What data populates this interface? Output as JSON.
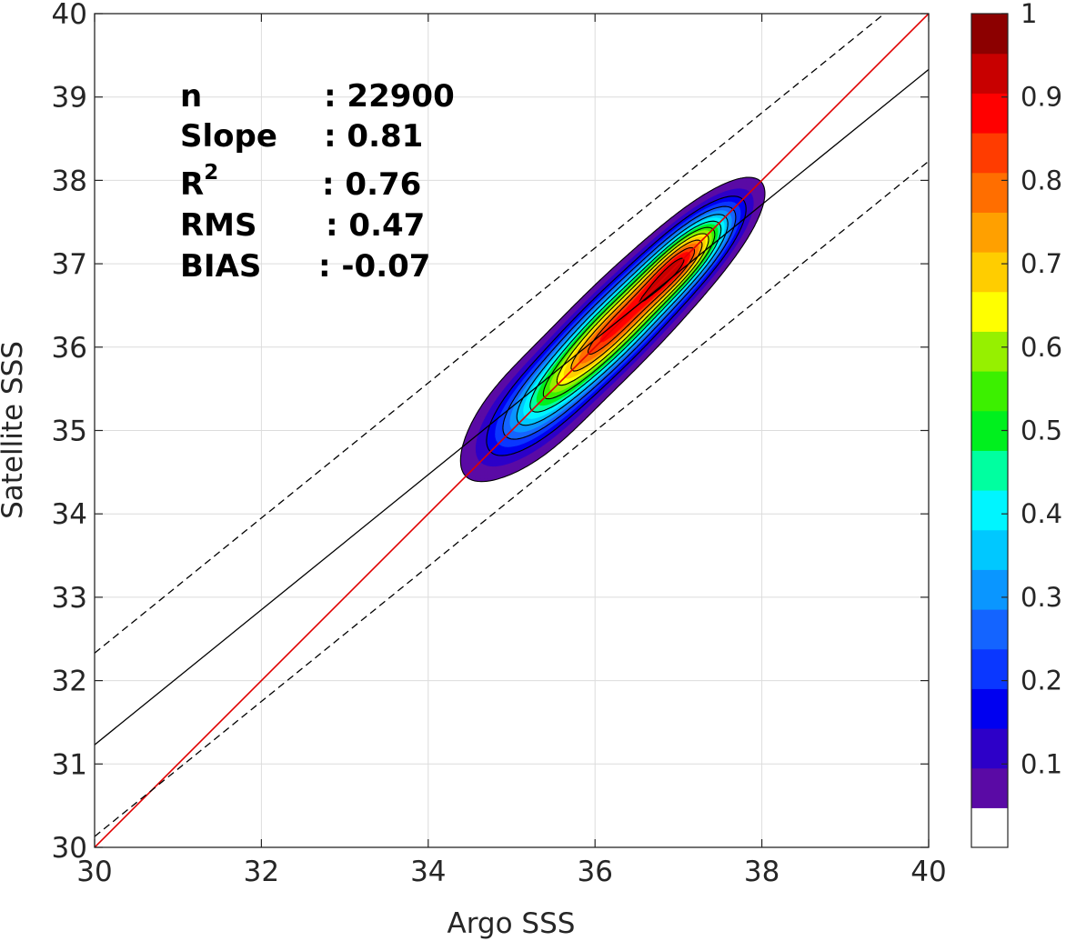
{
  "chart_data": {
    "type": "contour",
    "xlabel": "Argo SSS",
    "ylabel": "Satellite SSS",
    "xlim": [
      30,
      40
    ],
    "ylim": [
      30,
      40
    ],
    "xticks": [
      "30",
      "32",
      "34",
      "36",
      "38",
      "40"
    ],
    "yticks": [
      "30",
      "31",
      "32",
      "33",
      "34",
      "35",
      "36",
      "37",
      "38",
      "39",
      "40"
    ],
    "grid": true,
    "stats": {
      "n_label": "n",
      "n_value": ": 22900",
      "slope_label": "Slope",
      "slope_value": ": 0.81",
      "r2_label": "R",
      "r2_sup": "2",
      "r2_value": ": 0.76",
      "rms_label": "RMS",
      "rms_value": ": 0.47",
      "bias_label": "BIAS",
      "bias_value": ": -0.07"
    },
    "lines": [
      {
        "style": "one-to-one",
        "color": "#e00000",
        "slope": 1.0,
        "intercept": 0.0
      },
      {
        "style": "regression",
        "color": "#000000",
        "slope": 0.81,
        "intercept": 6.93
      },
      {
        "style": "dashed",
        "color": "#000000",
        "slope": 0.81,
        "intercept": 8.03
      },
      {
        "style": "dashed",
        "color": "#000000",
        "slope": 0.81,
        "intercept": 5.83
      }
    ],
    "density": {
      "centers": [
        {
          "x": 36.2,
          "y": 36.2,
          "amp": 1.0,
          "sa": 0.95,
          "sb": 0.22
        },
        {
          "x": 37.1,
          "y": 37.1,
          "amp": 0.62,
          "sa": 0.5,
          "sb": 0.17
        },
        {
          "x": 35.2,
          "y": 35.2,
          "amp": 0.14,
          "sa": 0.55,
          "sb": 0.3
        }
      ]
    },
    "colorbar": {
      "ticks": [
        "0.1",
        "0.2",
        "0.3",
        "0.4",
        "0.5",
        "0.6",
        "0.7",
        "0.8",
        "0.9",
        "1"
      ],
      "range": [
        0,
        1
      ],
      "levels": [
        0.05,
        0.1,
        0.15,
        0.2,
        0.25,
        0.3,
        0.35,
        0.4,
        0.45,
        0.5,
        0.55,
        0.6,
        0.65,
        0.7,
        0.75,
        0.8,
        0.85,
        0.9,
        0.95
      ],
      "colors": [
        "#ffffff",
        "#5a0aa5",
        "#2d00c8",
        "#0000f0",
        "#0a37ff",
        "#1464ff",
        "#0a96ff",
        "#00c8ff",
        "#00f5ff",
        "#00ffa0",
        "#00f01e",
        "#3cf000",
        "#96f000",
        "#ffff00",
        "#ffcd00",
        "#ffa000",
        "#ff6e00",
        "#ff3c00",
        "#ff0000",
        "#c80000",
        "#8c0000"
      ]
    }
  }
}
